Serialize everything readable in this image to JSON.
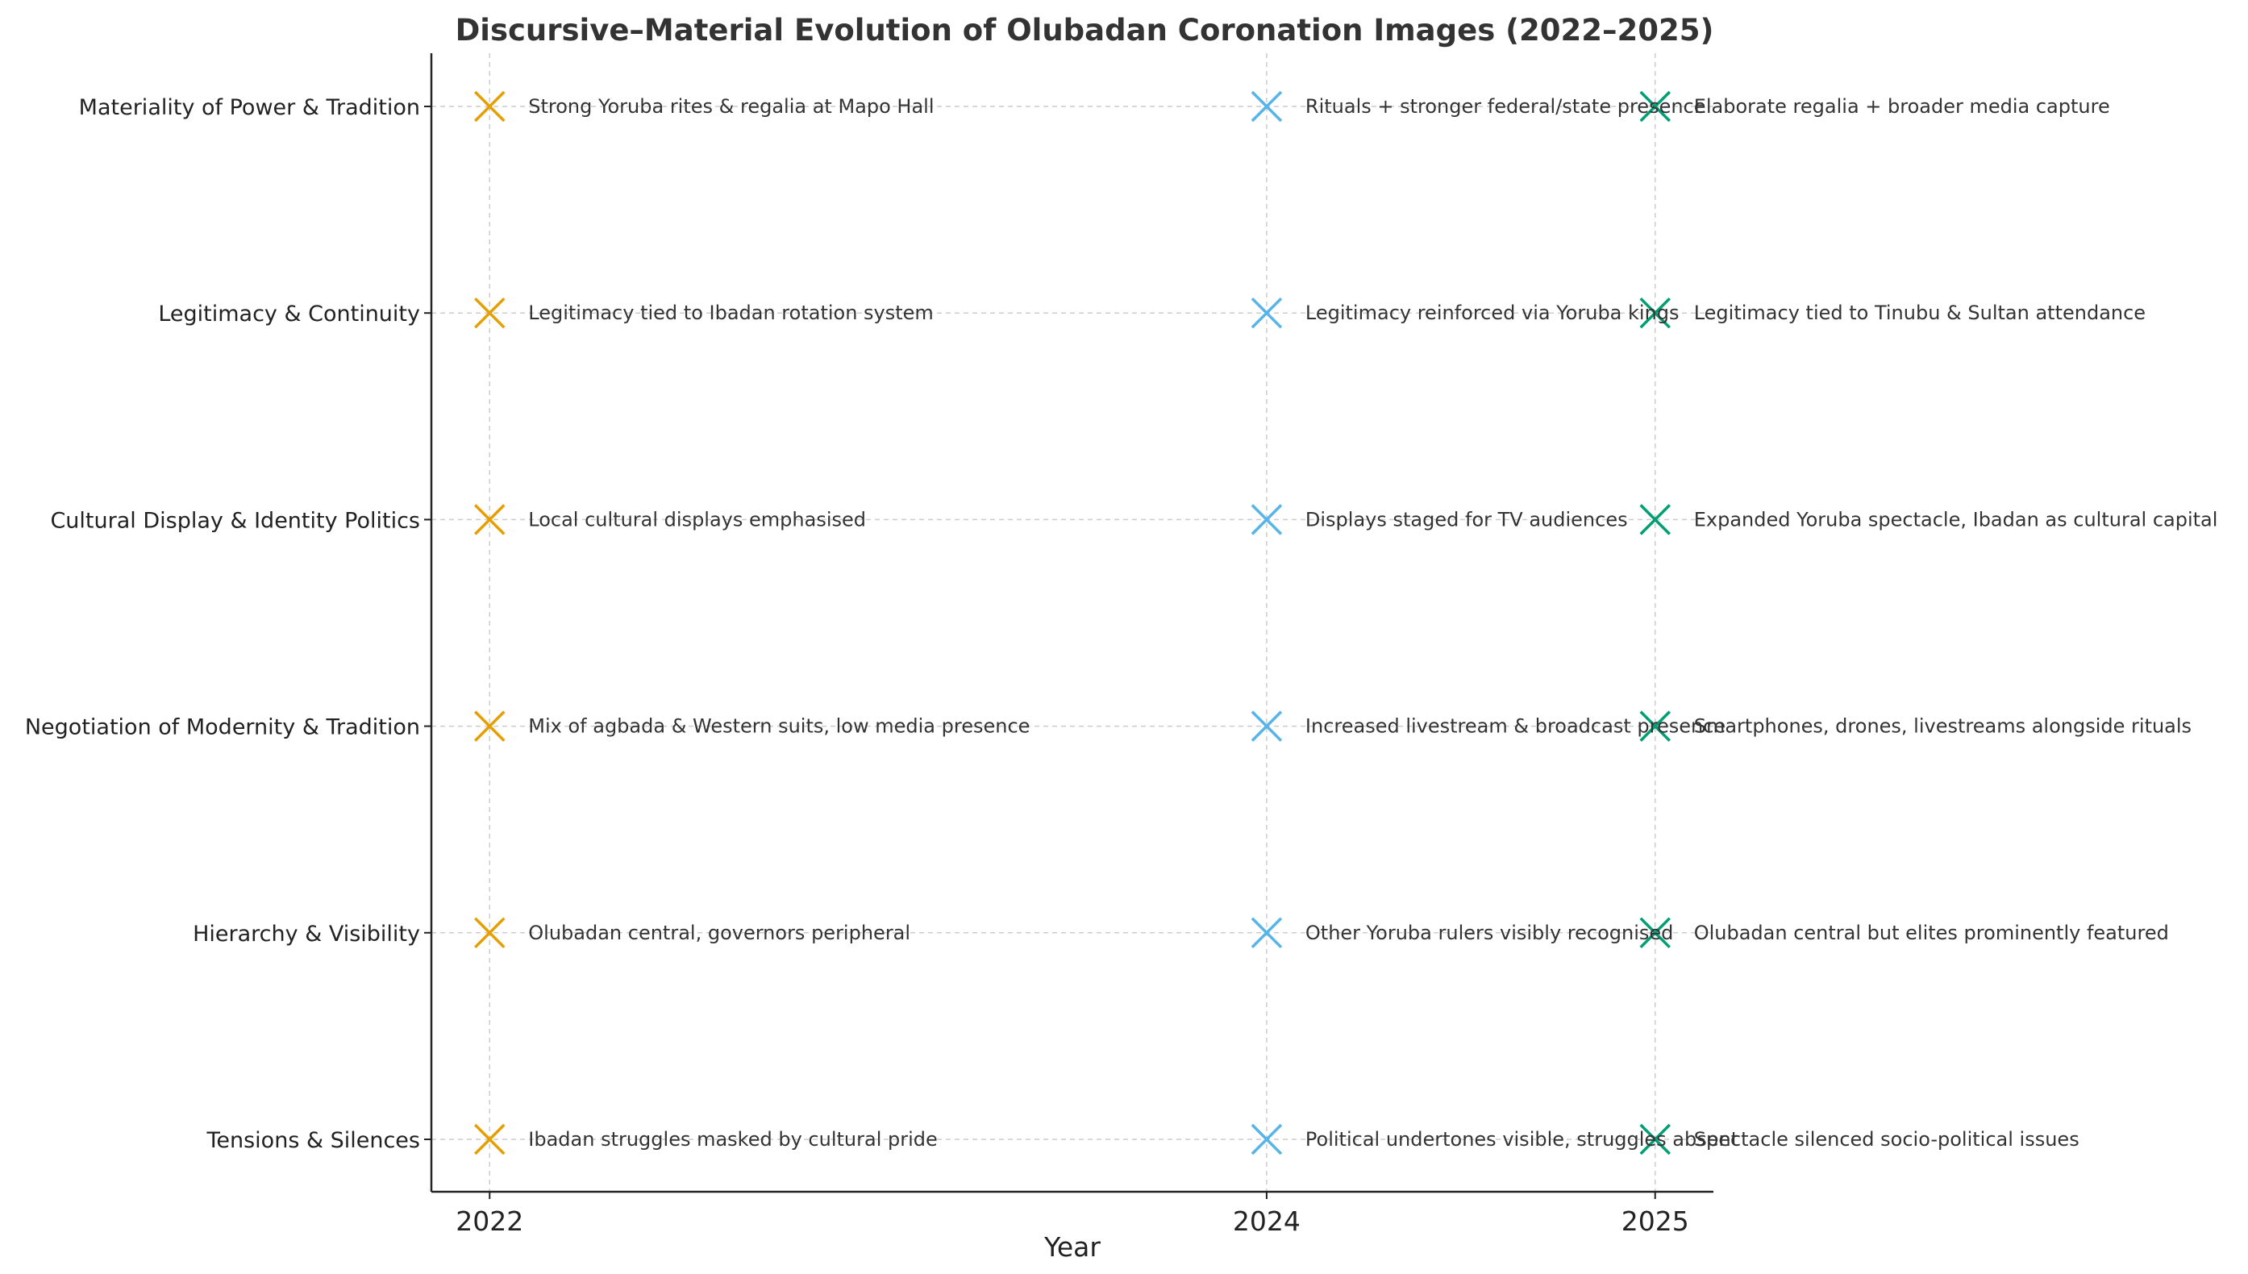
{
  "chart_data": {
    "type": "scatter",
    "title": "Discursive–Material Evolution of Olubadan Coronation Images (2022–2025)",
    "xlabel": "Year",
    "ylabel": "",
    "x": [
      2022,
      2024,
      2025
    ],
    "x_tick_labels": [
      "2022",
      "2024",
      "2025"
    ],
    "xlim": [
      2021.85,
      2025.15
    ],
    "categories": [
      "Materiality of Power & Tradition",
      "Legitimacy & Continuity",
      "Cultural Display & Identity Politics",
      "Negotiation of Modernity & Tradition",
      "Hierarchy & Visibility",
      "Tensions & Silences"
    ],
    "marker": "x",
    "grid": true,
    "series": [
      {
        "name": "2022",
        "year": 2022,
        "color": "#E69F00",
        "annotations": [
          "Strong Yoruba rites & regalia at Mapo Hall",
          "Legitimacy tied to Ibadan rotation system",
          "Local cultural displays emphasised",
          "Mix of agbada & Western suits, low media presence",
          "Olubadan central, governors peripheral",
          "Ibadan struggles masked by cultural pride"
        ]
      },
      {
        "name": "2024",
        "year": 2024,
        "color": "#56B4E9",
        "annotations": [
          "Rituals + stronger federal/state presence",
          "Legitimacy reinforced via Yoruba kings",
          "Displays staged for TV audiences",
          "Increased livestream & broadcast presence",
          "Other Yoruba rulers visibly recognised",
          "Political undertones visible, struggles absent"
        ]
      },
      {
        "name": "2025",
        "year": 2025,
        "color": "#009E73",
        "annotations": [
          "Elaborate regalia + broader media capture",
          "Legitimacy tied to Tinubu & Sultan attendance",
          "Expanded Yoruba spectacle, Ibadan as cultural capital",
          "Smartphones, drones, livestreams alongside rituals",
          "Olubadan central but elites prominently featured",
          "Spectacle silenced socio-political issues"
        ]
      }
    ]
  }
}
